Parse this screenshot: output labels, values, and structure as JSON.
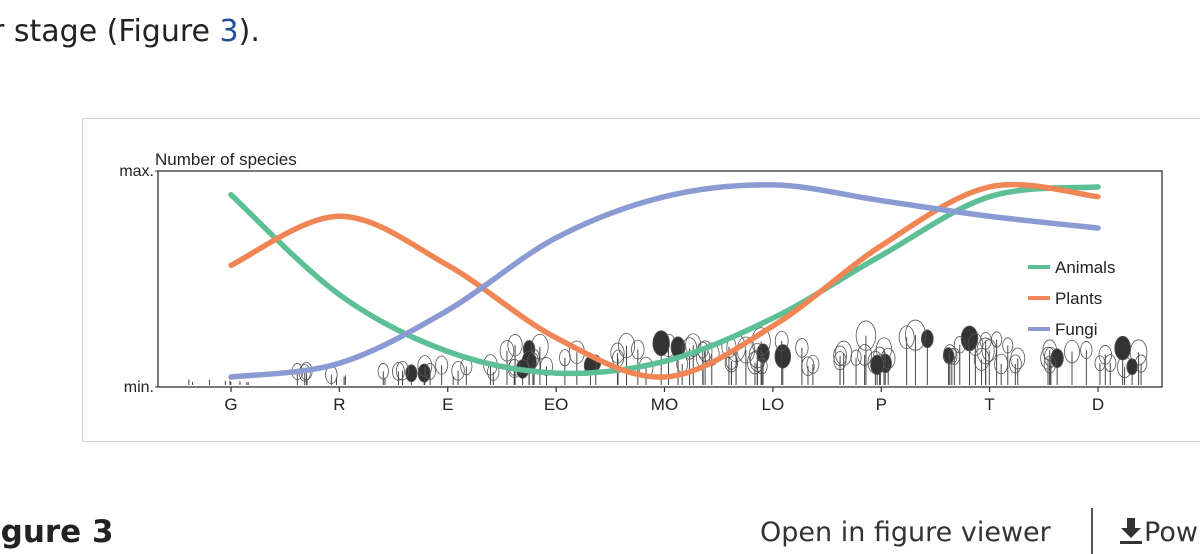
{
  "text": {
    "prefix": "r stage (Figure ",
    "figure_ref": "3",
    "suffix": ")."
  },
  "figure_label": "igure 3",
  "links": {
    "open_viewer": "Open in figure viewer",
    "powerpoint": "Pow"
  },
  "icons": {
    "download": "download-icon"
  },
  "chart_data": {
    "type": "line",
    "title": "",
    "ylabel": "Number of species",
    "xlabel": "",
    "y_tick_labels": [
      "min.",
      "max."
    ],
    "ylim": [
      0,
      1
    ],
    "categories": [
      "G",
      "R",
      "E",
      "EO",
      "MO",
      "LO",
      "P",
      "T",
      "D"
    ],
    "legend_position": "right",
    "grid": false,
    "series": [
      {
        "name": "Animals",
        "color": "#5dbf95",
        "values": [
          0.93,
          0.42,
          0.13,
          0.02,
          0.08,
          0.3,
          0.62,
          0.92,
          0.97
        ]
      },
      {
        "name": "Plants",
        "color": "#f08655",
        "values": [
          0.57,
          0.82,
          0.57,
          0.2,
          0.0,
          0.26,
          0.67,
          0.97,
          0.92
        ]
      },
      {
        "name": "Fungi",
        "color": "#8a9bd3",
        "values": [
          0.0,
          0.07,
          0.34,
          0.71,
          0.92,
          0.98,
          0.9,
          0.82,
          0.76
        ]
      }
    ]
  }
}
